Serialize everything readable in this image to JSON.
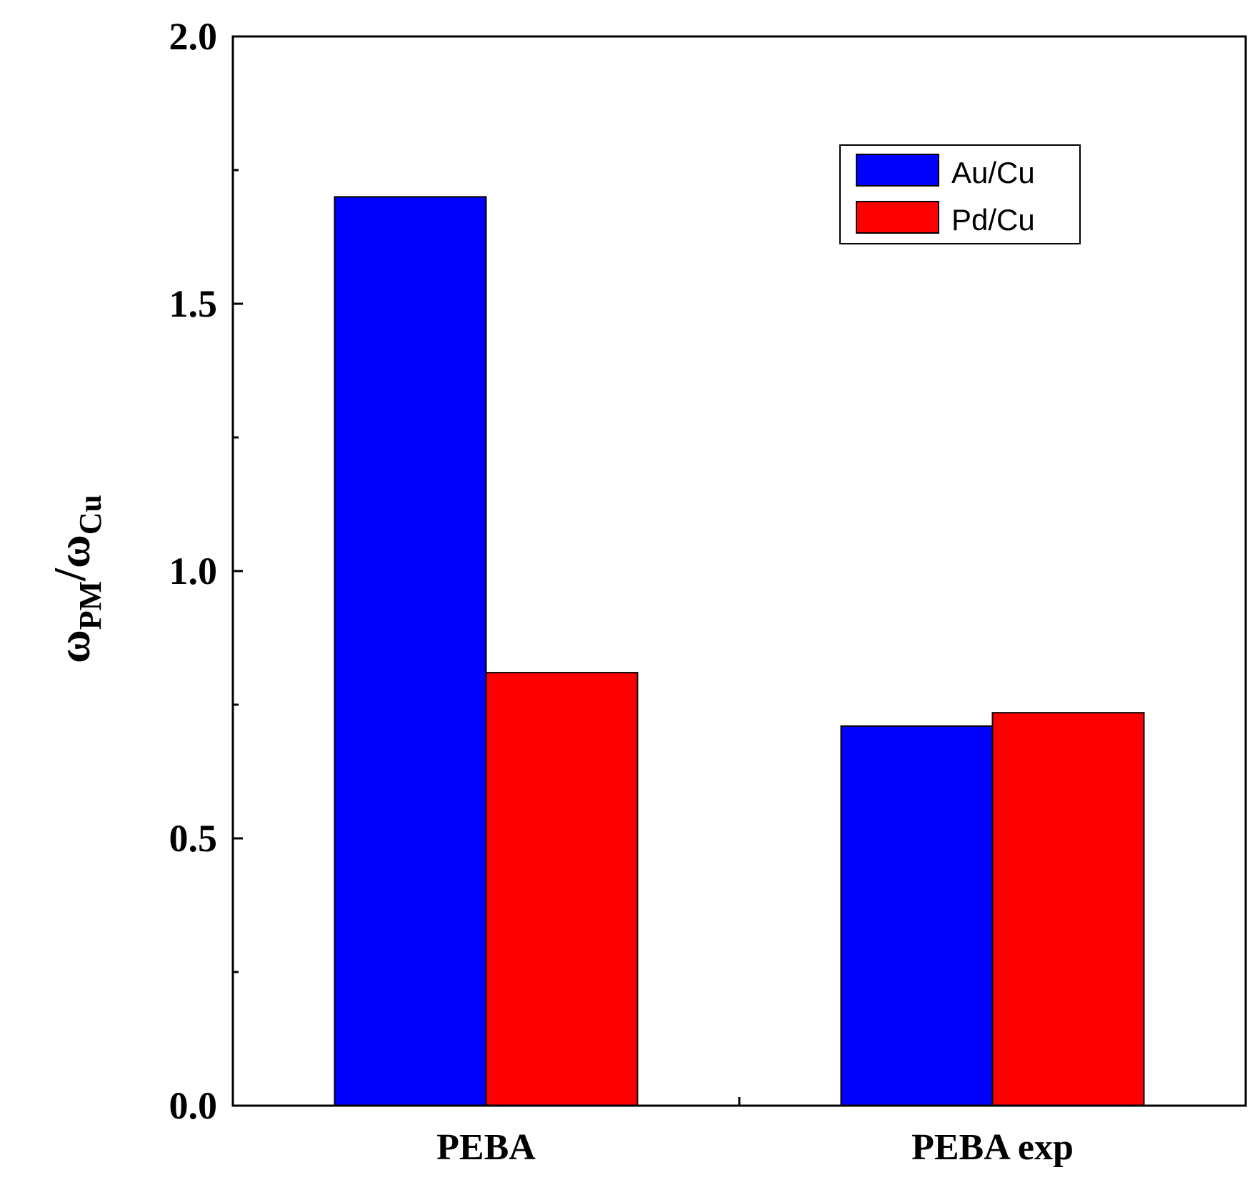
{
  "chart_data": {
    "type": "bar",
    "title": "",
    "xlabel": "",
    "ylabel": {
      "main": "ω",
      "sub1": "PM",
      "sep": "/",
      "main2": "ω",
      "sub2": "Cu"
    },
    "categories": [
      "PEBA",
      "PEBA exp"
    ],
    "series": [
      {
        "name": "Au/Cu",
        "values": [
          1.7,
          0.71
        ],
        "color": "#0000ff"
      },
      {
        "name": "Pd/Cu",
        "values": [
          0.81,
          0.735
        ],
        "color": "#ff0000"
      }
    ],
    "ylim": [
      0.0,
      2.0
    ],
    "yticks": [
      "0.0",
      "0.5",
      "1.0",
      "1.5",
      "2.0"
    ],
    "legend_position": "top-right",
    "grid": false
  }
}
